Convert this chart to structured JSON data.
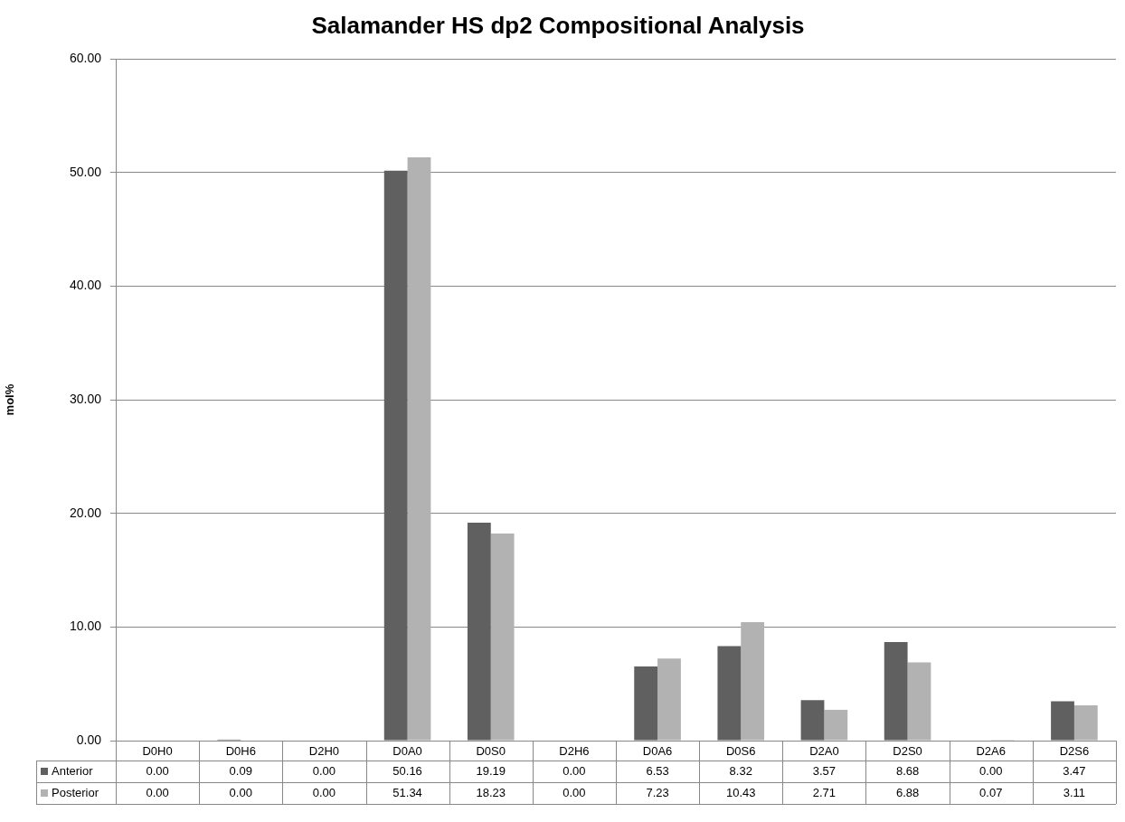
{
  "chart_data": {
    "type": "bar",
    "title": "Salamander HS dp2 Compositional Analysis",
    "ylabel": "mol%",
    "categories": [
      "D0H0",
      "D0H6",
      "D2H0",
      "D0A0",
      "D0S0",
      "D2H6",
      "D0A6",
      "D0S6",
      "D2A0",
      "D2S0",
      "D2A6",
      "D2S6"
    ],
    "series": [
      {
        "name": "Anterior",
        "color": "#606060",
        "values": [
          0.0,
          0.09,
          0.0,
          50.16,
          19.19,
          0.0,
          6.53,
          8.32,
          3.57,
          8.68,
          0.0,
          3.47
        ],
        "value_labels": [
          "0.00",
          "0.09",
          "0.00",
          "50.16",
          "19.19",
          "0.00",
          "6.53",
          "8.32",
          "3.57",
          "8.68",
          "0.00",
          "3.47"
        ]
      },
      {
        "name": "Posterior",
        "color": "#b2b2b2",
        "values": [
          0.0,
          0.0,
          0.0,
          51.34,
          18.23,
          0.0,
          7.23,
          10.43,
          2.71,
          6.88,
          0.07,
          3.11
        ],
        "value_labels": [
          "0.00",
          "0.00",
          "0.00",
          "51.34",
          "18.23",
          "0.00",
          "7.23",
          "10.43",
          "2.71",
          "6.88",
          "0.07",
          "3.11"
        ]
      }
    ],
    "ylim": [
      0,
      60
    ],
    "yticks": [
      {
        "value": 0,
        "label": "0.00"
      },
      {
        "value": 10,
        "label": "10.00"
      },
      {
        "value": 20,
        "label": "20.00"
      },
      {
        "value": 30,
        "label": "30.00"
      },
      {
        "value": 40,
        "label": "40.00"
      },
      {
        "value": 50,
        "label": "50.00"
      },
      {
        "value": 60,
        "label": "60.00"
      }
    ],
    "grid": "y",
    "legend": "bottom"
  }
}
